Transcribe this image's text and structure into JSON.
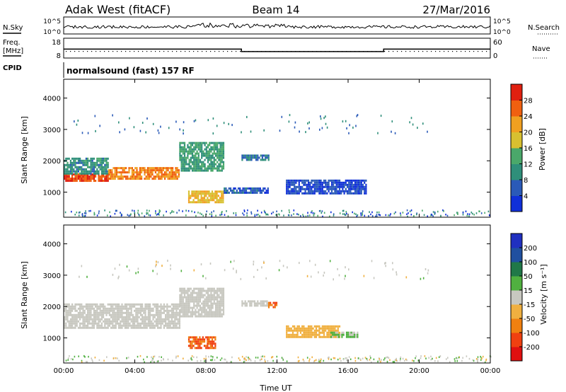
{
  "header": {
    "station": "Adak West (fitACF)",
    "beam": "Beam 14",
    "date": "27/Mar/2016"
  },
  "noise_panel": {
    "left_label": "N.Sky",
    "right_label": "N.Search",
    "tick_top": "10^5",
    "tick_bottom": "10^0"
  },
  "freq_panel": {
    "left_label_line1": "Freq.",
    "left_label_line2": "[MHz]",
    "right_label": "Nave",
    "left_ticks": [
      "18",
      "8"
    ],
    "right_ticks": [
      "60",
      "0"
    ]
  },
  "cpid_panel": {
    "label": "CPID",
    "program": "normalsound (fast) 157 RF"
  },
  "colors": {
    "power": [
      "#1030d8",
      "#2a5ab8",
      "#2f8f7a",
      "#4aa86a",
      "#d8c030",
      "#f0a020",
      "#f06010",
      "#e02010"
    ],
    "velocity": [
      "#e01010",
      "#f04010",
      "#f08010",
      "#f0b040",
      "#c8c8c0",
      "#50b040",
      "#207848",
      "#2050a0",
      "#2030c0"
    ]
  },
  "chart_data": [
    {
      "type": "heatmap",
      "name": "power",
      "ylabel": "Slant Range [km]",
      "yticks": [
        1000,
        2000,
        3000,
        4000
      ],
      "ylim": [
        200,
        4600
      ],
      "xlim": [
        0,
        24
      ],
      "colorbar_label": "Power [dB]",
      "colorbar_ticks": [
        4,
        8,
        12,
        16,
        20,
        24,
        28
      ],
      "colorbar_range": [
        0,
        32
      ],
      "regions": [
        {
          "t": [
            0.0,
            2.5
          ],
          "r": [
            1350,
            1600
          ],
          "v": 28
        },
        {
          "t": [
            0.0,
            2.5
          ],
          "r": [
            1600,
            2100
          ],
          "v": 10
        },
        {
          "t": [
            2.5,
            6.5
          ],
          "r": [
            1400,
            1800
          ],
          "v": 24
        },
        {
          "t": [
            6.5,
            9.0
          ],
          "r": [
            1700,
            2600
          ],
          "v": 12
        },
        {
          "t": [
            7.0,
            9.0
          ],
          "r": [
            650,
            1050
          ],
          "v": 20
        },
        {
          "t": [
            9.0,
            11.5
          ],
          "r": [
            950,
            1150
          ],
          "v": 6
        },
        {
          "t": [
            10.0,
            11.5
          ],
          "r": [
            2000,
            2200
          ],
          "v": 8
        },
        {
          "t": [
            12.5,
            17.0
          ],
          "r": [
            950,
            1400
          ],
          "v": 4
        }
      ]
    },
    {
      "type": "heatmap",
      "name": "velocity",
      "xlabel": "Time UT",
      "ylabel": "Slant Range [km]",
      "xticks": [
        "00:00",
        "04:00",
        "08:00",
        "12:00",
        "16:00",
        "20:00",
        "00:00"
      ],
      "yticks": [
        1000,
        2000,
        3000,
        4000
      ],
      "ylim": [
        200,
        4600
      ],
      "xlim": [
        0,
        24
      ],
      "colorbar_label": "Velocity [m s⁻¹]",
      "colorbar_ticks": [
        -200,
        -100,
        -50,
        -15,
        15,
        50,
        100,
        200
      ],
      "regions": [
        {
          "t": [
            0.0,
            6.5
          ],
          "r": [
            1350,
            2100
          ],
          "v": 0
        },
        {
          "t": [
            6.5,
            9.0
          ],
          "r": [
            1700,
            2600
          ],
          "v": 0
        },
        {
          "t": [
            7.0,
            8.5
          ],
          "r": [
            700,
            1050
          ],
          "v": -100
        },
        {
          "t": [
            10.0,
            11.5
          ],
          "r": [
            2000,
            2200
          ],
          "v": 0
        },
        {
          "t": [
            11.5,
            12.0
          ],
          "r": [
            2000,
            2150
          ],
          "v": -100
        },
        {
          "t": [
            12.5,
            15.5
          ],
          "r": [
            1000,
            1400
          ],
          "v": -30
        },
        {
          "t": [
            15.0,
            16.5
          ],
          "r": [
            1000,
            1200
          ],
          "v": 20
        }
      ]
    }
  ]
}
